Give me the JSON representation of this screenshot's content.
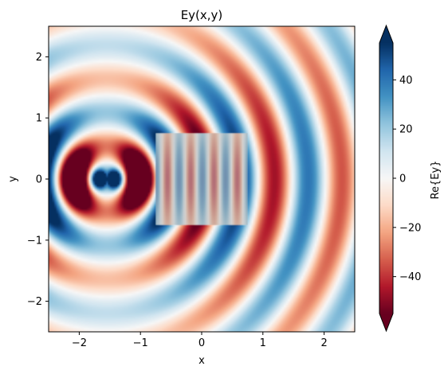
{
  "chart_data": {
    "type": "heatmap",
    "title": "Ey(x,y)",
    "xlabel": "x",
    "ylabel": "y",
    "xlim": [
      -2.5,
      2.5
    ],
    "ylim": [
      -2.5,
      2.5
    ],
    "xticks": [
      -2,
      -1,
      0,
      1,
      2
    ],
    "yticks": [
      -2,
      -1,
      0,
      1,
      2
    ],
    "colorbar": {
      "label": "Re{Ey}",
      "colormap": "RdBu",
      "vmin": -55,
      "vmax": 55,
      "ticks": [
        -40,
        -20,
        0,
        20,
        40
      ],
      "extend": "both"
    },
    "overlay_box": {
      "x": [
        -0.75,
        0.75
      ],
      "y": [
        -0.75,
        0.75
      ],
      "color": "#b4b4b4"
    },
    "source_center": {
      "x": -1.55,
      "y": 0.0
    },
    "colors": {
      "low": "#67001f",
      "mid": "#f7f7f7",
      "high": "#053061"
    }
  }
}
